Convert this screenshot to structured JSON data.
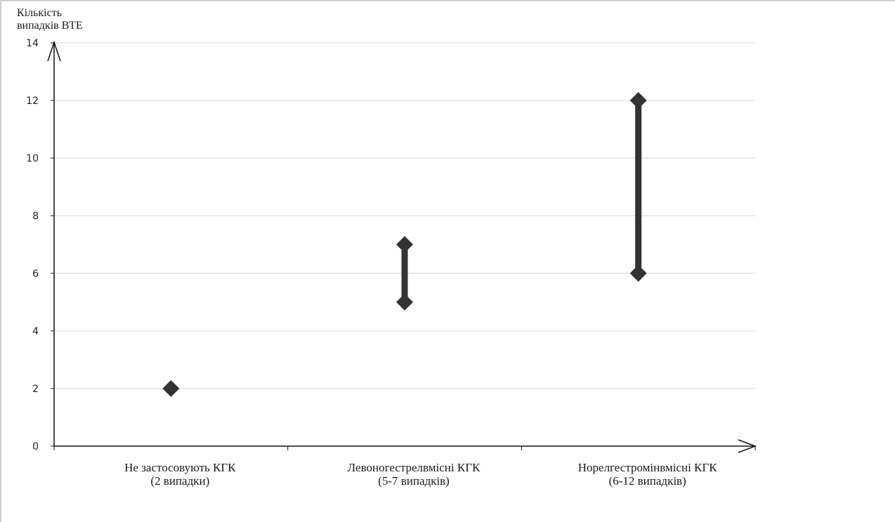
{
  "chart_data": {
    "type": "scatter",
    "ylabel_lines": [
      "Кількість",
      "випадків ВТЕ"
    ],
    "xlabel": "",
    "ylim": [
      0,
      14
    ],
    "yticks": [
      0,
      2,
      4,
      6,
      8,
      10,
      12,
      14
    ],
    "grid": true,
    "categories": [
      {
        "line1": "Не застосовують КГК",
        "line2": "(2 випадки)"
      },
      {
        "line1": "Левоногестрелвмісні КГК",
        "line2": "(5-7 випадків)"
      },
      {
        "line1": "Норелгестромінвмісні КГК",
        "line2": "(6-12 випадків)"
      }
    ],
    "ranges": [
      {
        "low": 2,
        "high": 2
      },
      {
        "low": 5,
        "high": 7
      },
      {
        "low": 6,
        "high": 12
      }
    ],
    "marker_color": "#333333",
    "axis_color": "#111111",
    "grid_color": "#e4e4e4"
  }
}
